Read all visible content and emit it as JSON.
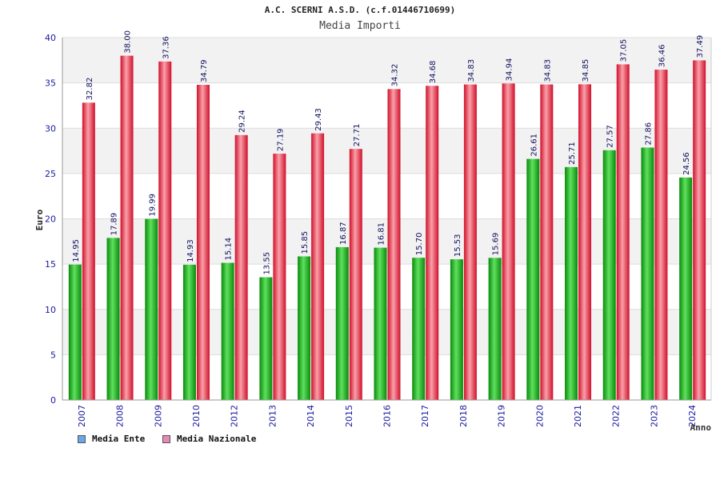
{
  "header": {
    "title": "A.C. SCERNI A.S.D. (c.f.01446710699)",
    "subtitle": "Media Importi"
  },
  "chart_data": {
    "type": "bar",
    "title": "Media Importi",
    "xlabel": "Anno",
    "ylabel": "Euro",
    "ylim": [
      0,
      40
    ],
    "yticks": [
      "0",
      "5",
      "10",
      "15",
      "20",
      "25",
      "30",
      "35",
      "40"
    ],
    "grid": true,
    "categories": [
      "2007",
      "2008",
      "2009",
      "2010",
      "2012",
      "2013",
      "2014",
      "2015",
      "2016",
      "2017",
      "2018",
      "2019",
      "2020",
      "2021",
      "2022",
      "2023",
      "2024"
    ],
    "series": [
      {
        "name": "Media Ente",
        "color": "#1ab01a",
        "values": [
          14.95,
          17.89,
          19.99,
          14.93,
          15.14,
          13.55,
          15.85,
          16.87,
          16.81,
          15.7,
          15.53,
          15.69,
          26.61,
          25.71,
          27.57,
          27.86,
          24.56
        ],
        "labels": [
          "14.95",
          "17.89",
          "19.99",
          "14.93",
          "15.14",
          "13.55",
          "15.85",
          "16.87",
          "16.81",
          "15.70",
          "15.53",
          "15.69",
          "26.61",
          "25.71",
          "27.57",
          "27.86",
          "24.56"
        ]
      },
      {
        "name": "Media Nazionale",
        "color": "#e8203a",
        "values": [
          32.82,
          38.0,
          37.36,
          34.79,
          29.24,
          27.19,
          29.43,
          27.71,
          34.32,
          34.68,
          34.83,
          34.94,
          34.83,
          34.85,
          37.05,
          36.46,
          37.49
        ],
        "labels": [
          "32.82",
          "38.00",
          "37.36",
          "34.79",
          "29.24",
          "27.19",
          "29.43",
          "27.71",
          "34.32",
          "34.68",
          "34.83",
          "34.94",
          "34.83",
          "34.85",
          "37.05",
          "36.46",
          "37.49"
        ]
      }
    ],
    "legend": [
      {
        "label": "Media Ente",
        "color": "#6aa7e8"
      },
      {
        "label": "Media Nazionale",
        "color": "#e489b8"
      }
    ]
  }
}
